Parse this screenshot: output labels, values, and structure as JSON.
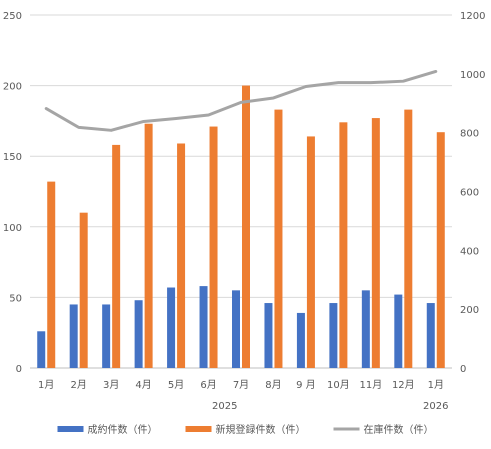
{
  "chart_data": {
    "type": "bar",
    "categories": [
      "1月",
      "2月",
      "3月",
      "4月",
      "5月",
      "6月",
      "7月",
      "8月",
      "9 月",
      "10月",
      "11月",
      "12月",
      "1月"
    ],
    "year_labels": [
      {
        "text": "2025",
        "category_index": 5.5
      },
      {
        "text": "2026",
        "category_index": 12
      }
    ],
    "series": [
      {
        "name": "成約件数（件）",
        "type": "bar",
        "axis": "left",
        "color": "#4472C4",
        "values": [
          26,
          45,
          45,
          48,
          57,
          58,
          55,
          46,
          39,
          46,
          55,
          52,
          46
        ]
      },
      {
        "name": "新規登録件数（件）",
        "type": "bar",
        "axis": "left",
        "color": "#ED7D31",
        "values": [
          132,
          110,
          158,
          173,
          159,
          171,
          200,
          183,
          164,
          174,
          177,
          183,
          167
        ]
      },
      {
        "name": "在庫件数（件）",
        "type": "line",
        "axis": "right",
        "color": "#A5A5A5",
        "values": [
          882,
          818,
          808,
          838,
          848,
          860,
          903,
          918,
          957,
          970,
          970,
          975,
          1008
        ]
      }
    ],
    "y_left": {
      "min": 0,
      "max": 250,
      "ticks": [
        0,
        50,
        100,
        150,
        200,
        250
      ]
    },
    "y_right": {
      "min": 0,
      "max": 1200,
      "ticks": [
        0,
        200,
        400,
        600,
        800,
        1000,
        1200
      ]
    },
    "grid": true,
    "legend_position": "bottom"
  }
}
